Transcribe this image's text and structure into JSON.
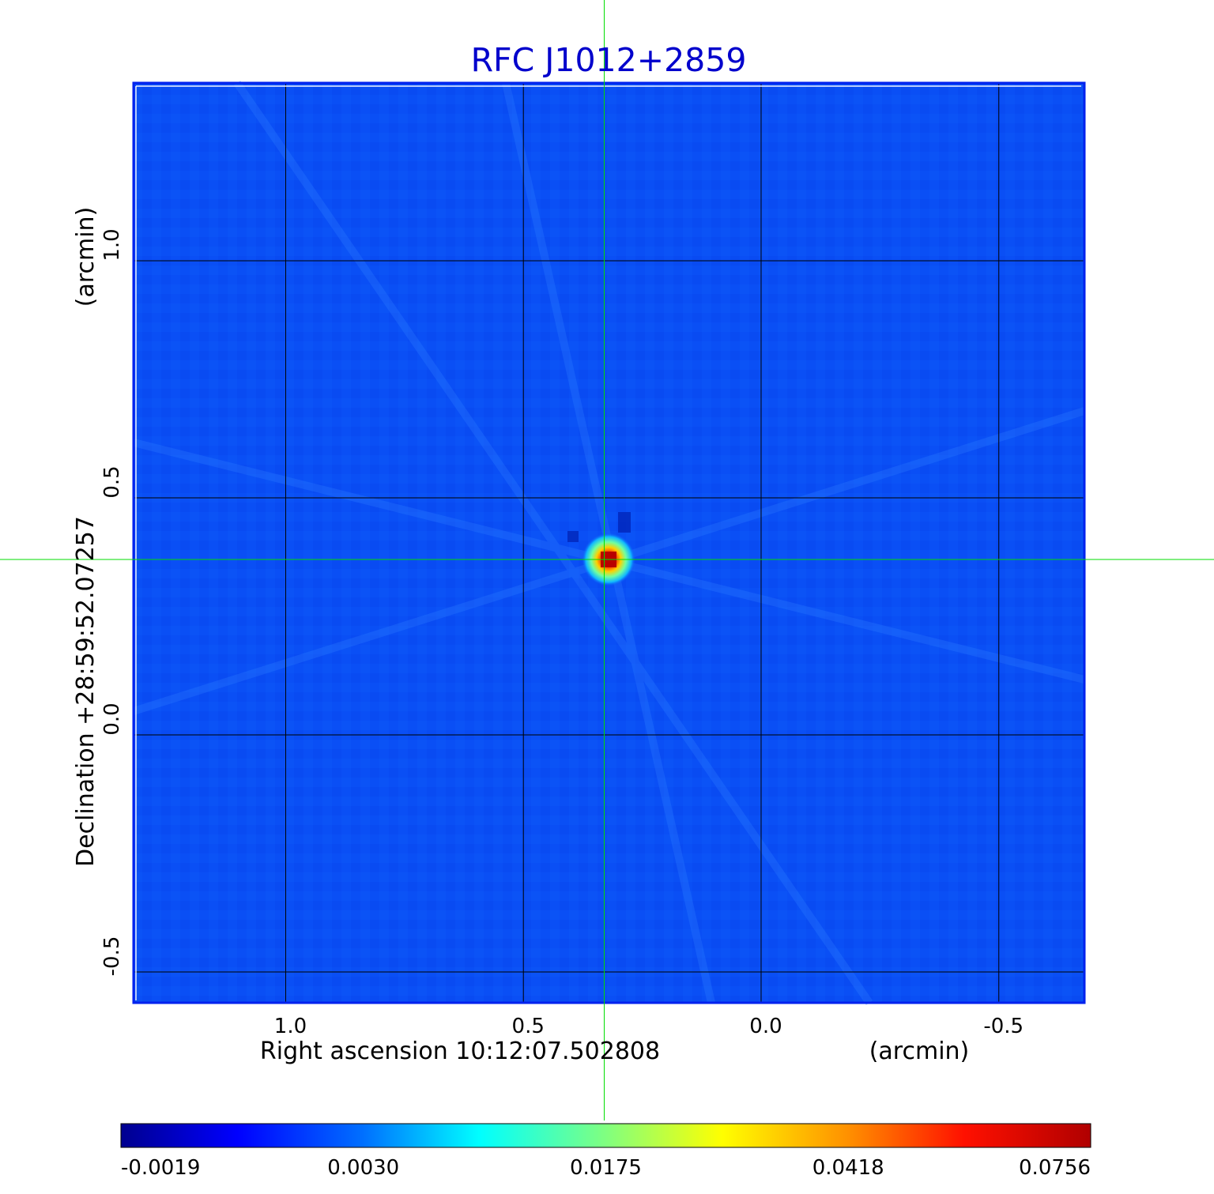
{
  "chart_data": {
    "type": "heatmap",
    "title": "RFC J1012+2859",
    "xlabel": "Right ascension  10:12:07.502808",
    "xunit": "(arcmin)",
    "ylabel": "Declination  +28:59:52.07257",
    "yunit": "(arcmin)",
    "xlim": [
      1.32,
      -0.68
    ],
    "ylim": [
      -0.565,
      1.375
    ],
    "x_ticks": [
      {
        "value": 1.0,
        "label": "1.0"
      },
      {
        "value": 0.5,
        "label": "0.5"
      },
      {
        "value": 0.0,
        "label": "0.0"
      },
      {
        "value": -0.5,
        "label": "-0.5"
      }
    ],
    "y_ticks": [
      {
        "value": 1.0,
        "label": "1.0"
      },
      {
        "value": 0.5,
        "label": "0.5"
      },
      {
        "value": 0.0,
        "label": "0.0"
      },
      {
        "value": -0.5,
        "label": "-0.5"
      }
    ],
    "grid": true,
    "crosshair": {
      "x": 0.33,
      "y": 0.37,
      "color": "#00dd00"
    },
    "source_peak": {
      "x": 0.33,
      "y": 0.37,
      "value": 0.0756
    },
    "colormap": "jet",
    "colorbar": {
      "placement": "bottom",
      "tick_labels": [
        "-0.0019",
        "0.0030",
        "0.0175",
        "0.0418",
        "0.0756"
      ],
      "min": -0.0019,
      "max": 0.0756
    },
    "colors": {
      "title": "#0000cc",
      "background": "#0a4ff5",
      "frame": "#0022ee",
      "grid": "#000000",
      "axis_text": "#000000"
    }
  }
}
